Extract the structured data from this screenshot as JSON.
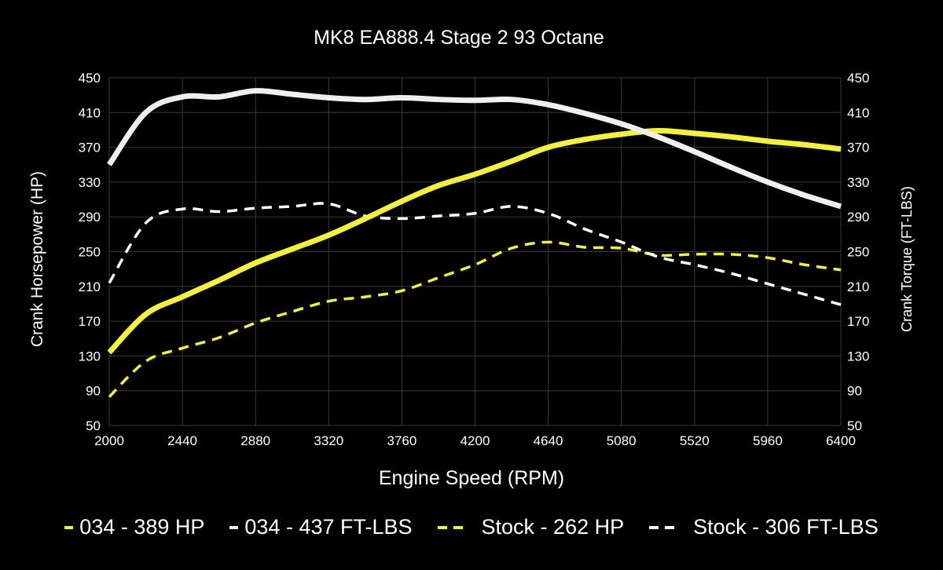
{
  "chart_data": {
    "type": "line",
    "title": "MK8 EA888.4 Stage 2 93 Octane",
    "xlabel": "Engine Speed (RPM)",
    "ylabel": "Crank Horsepower (HP)",
    "ylabel_right": "Crank Torque (FT-LBS)",
    "xlim": [
      2000,
      6400
    ],
    "ylim": [
      50,
      450
    ],
    "ylim_right": [
      50,
      450
    ],
    "x_ticks": [
      "2000",
      "2440",
      "2880",
      "3320",
      "3760",
      "4200",
      "4640",
      "5080",
      "5520",
      "5960",
      "6400"
    ],
    "y_ticks": [
      "50",
      "90",
      "130",
      "170",
      "210",
      "250",
      "290",
      "330",
      "370",
      "410",
      "450"
    ],
    "grid": true,
    "legend_position": "bottom",
    "x": [
      2000,
      2220,
      2440,
      2660,
      2880,
      3100,
      3320,
      3540,
      3760,
      3980,
      4200,
      4420,
      4640,
      4860,
      5080,
      5300,
      5520,
      5740,
      5960,
      6180,
      6400
    ],
    "series": [
      {
        "name": "034 - 389 HP",
        "color": "#f4f13c",
        "style": "solid",
        "values": [
          134,
          178,
          198,
          217,
          237,
          253,
          269,
          288,
          308,
          326,
          339,
          354,
          370,
          379,
          385,
          389,
          386,
          382,
          377,
          373,
          368
        ]
      },
      {
        "name": "034 - 437 FT-LBS",
        "color": "#efefef",
        "style": "solid",
        "values": [
          350,
          410,
          428,
          428,
          435,
          431,
          427,
          425,
          427,
          425,
          424,
          425,
          419,
          409,
          397,
          382,
          365,
          347,
          330,
          315,
          302
        ]
      },
      {
        "name": "Stock - 262 HP",
        "color": "#f4f13c",
        "style": "dashed",
        "values": [
          83,
          124,
          139,
          151,
          168,
          181,
          193,
          198,
          205,
          220,
          235,
          254,
          261,
          255,
          254,
          246,
          247,
          247,
          243,
          235,
          229
        ]
      },
      {
        "name": "Stock - 306 FT-LBS",
        "color": "#ffffff",
        "style": "dashed",
        "values": [
          214,
          283,
          299,
          296,
          300,
          302,
          305,
          291,
          288,
          291,
          294,
          302,
          294,
          276,
          261,
          244,
          235,
          225,
          213,
          201,
          189
        ]
      }
    ]
  }
}
